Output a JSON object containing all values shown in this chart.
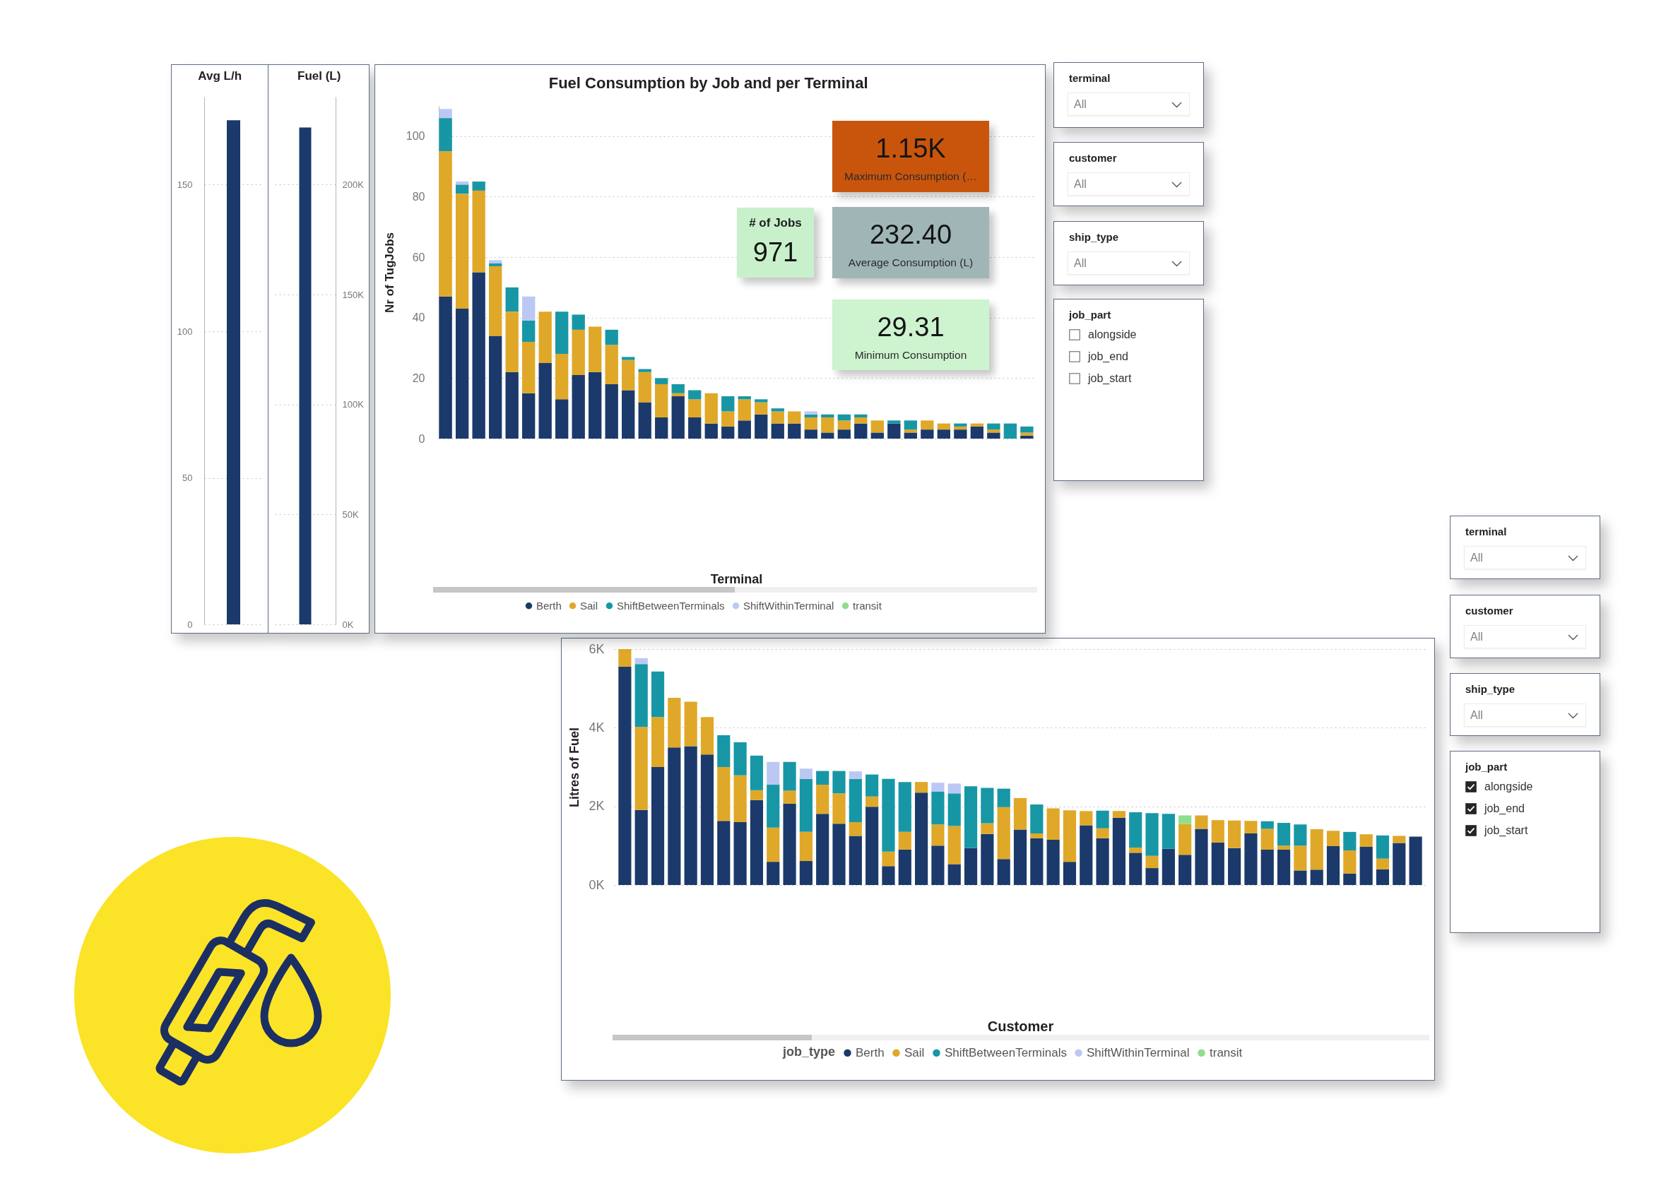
{
  "chart_data": [
    {
      "type": "bar",
      "title": "Avg L/h",
      "categories": [
        null
      ],
      "values": [
        172
      ],
      "color": "#1b3a6b",
      "ylim": [
        0,
        180
      ],
      "yticks": [
        0,
        50,
        100,
        150
      ],
      "grid": "y"
    },
    {
      "type": "bar",
      "title": "Fuel (L)",
      "categories": [
        null
      ],
      "values": [
        226000
      ],
      "color": "#1b3a6b",
      "ylim": [
        0,
        240000
      ],
      "yticks": [
        {
          "value": 0,
          "label": "0K"
        },
        {
          "value": 50000,
          "label": "50K"
        },
        {
          "value": 100000,
          "label": "100K"
        },
        {
          "value": 150000,
          "label": "150K"
        },
        {
          "value": 200000,
          "label": "200K"
        }
      ],
      "grid": "y"
    },
    {
      "type": "bar",
      "title": "Fuel Consumption by Job and per Terminal",
      "xlabel": "Terminal",
      "ylabel": "Nr of TugJobs",
      "stacked": true,
      "legend": "bottom",
      "grid": "y",
      "ylim": [
        0,
        110
      ],
      "yticks": [
        0,
        20,
        40,
        60,
        80,
        100
      ],
      "categories": [
        null,
        null,
        null,
        null,
        null,
        null,
        null,
        null,
        null,
        null,
        null,
        null,
        null,
        null,
        null,
        null,
        null,
        null,
        null,
        null,
        null,
        null,
        null,
        null,
        null,
        null,
        null,
        null,
        null,
        null,
        null,
        null,
        null,
        null,
        null,
        null
      ],
      "series": [
        {
          "name": "Berth",
          "color": "#1b3a6b",
          "values": [
            47,
            43,
            55,
            34,
            22,
            15,
            25,
            13,
            21,
            22,
            18,
            16,
            12,
            7,
            14,
            7,
            5,
            4,
            6,
            8,
            5,
            5,
            3,
            2,
            3,
            5,
            2,
            5,
            2,
            3,
            3,
            3,
            4,
            2,
            null,
            1
          ]
        },
        {
          "name": "Sail",
          "color": "#e0a828",
          "values": [
            48,
            38,
            27,
            23,
            20,
            17,
            17,
            15,
            15,
            15,
            13,
            10,
            10,
            11,
            1,
            6,
            10,
            5,
            7,
            4,
            4,
            4,
            4,
            5,
            3,
            2,
            4,
            null,
            1,
            3,
            2,
            1,
            1,
            1,
            null,
            1
          ]
        },
        {
          "name": "ShiftBetweenTerminals",
          "color": "#1797a6",
          "values": [
            11,
            3,
            3,
            1,
            8,
            7,
            null,
            14,
            5,
            null,
            5,
            1,
            1,
            2,
            3,
            3,
            null,
            5,
            1,
            1,
            1,
            null,
            1,
            1,
            2,
            1,
            null,
            1,
            3,
            null,
            null,
            1,
            null,
            2,
            5,
            2
          ]
        },
        {
          "name": "ShiftWithinTerminal",
          "color": "#bcc8f4",
          "values": [
            3,
            1,
            null,
            1,
            null,
            8,
            null,
            null,
            null,
            null,
            null,
            null,
            null,
            null,
            null,
            null,
            null,
            null,
            null,
            null,
            null,
            null,
            1,
            null,
            null,
            null,
            null,
            null,
            null,
            null,
            null,
            null,
            null,
            null,
            null,
            null
          ]
        },
        {
          "name": "transit",
          "color": "#8ede8e",
          "values": [
            null,
            null,
            null,
            null,
            null,
            null,
            null,
            null,
            null,
            null,
            null,
            null,
            null,
            null,
            null,
            null,
            null,
            null,
            null,
            null,
            null,
            null,
            null,
            null,
            null,
            null,
            null,
            null,
            null,
            null,
            null,
            null,
            null,
            null,
            null,
            null
          ]
        }
      ]
    },
    {
      "type": "other",
      "annotations": [
        "1.15K"
      ],
      "xlabel": "Maximum Consumption (…",
      "color": "#c9550c"
    },
    {
      "type": "other",
      "title": "# of Jobs",
      "annotations": [
        "971"
      ],
      "color": "#c8f1cb"
    },
    {
      "type": "other",
      "annotations": [
        "232.40"
      ],
      "xlabel": "Average Consumption (L)",
      "color": "#a0b6b6"
    },
    {
      "type": "other",
      "annotations": [
        "29.31"
      ],
      "xlabel": "Minimum Consumption",
      "color": "#cdf3cf"
    },
    {
      "type": "other",
      "title": "terminal",
      "annotations": [
        "All"
      ]
    },
    {
      "type": "other",
      "title": "customer",
      "annotations": [
        "All"
      ]
    },
    {
      "type": "other",
      "title": "ship_type",
      "annotations": [
        "All"
      ]
    },
    {
      "type": "other",
      "title": "job_part",
      "categories": [
        "alongside",
        "job_end",
        "job_start"
      ]
    },
    {
      "type": "bar",
      "xlabel": "Customer",
      "ylabel": "Litres of Fuel",
      "legend_title": "job_type",
      "stacked": true,
      "legend": "bottom",
      "grid": "y",
      "ylim": [
        0,
        6000
      ],
      "yticks": [
        {
          "value": 0,
          "label": "0K"
        },
        {
          "value": 2000,
          "label": "2K"
        },
        {
          "value": 4000,
          "label": "4K"
        },
        {
          "value": 6000,
          "label": "6K"
        }
      ],
      "categories": [
        null,
        null,
        null,
        null,
        null,
        null,
        null,
        null,
        null,
        null,
        null,
        null,
        null,
        null,
        null,
        null,
        null,
        null,
        null,
        null,
        null,
        null,
        null,
        null,
        null,
        null,
        null,
        null,
        null,
        null,
        null,
        null,
        null,
        null,
        null,
        null,
        null,
        null,
        null,
        null,
        null,
        null,
        null,
        null,
        null,
        null,
        null,
        null,
        null
      ],
      "series": [
        {
          "name": "Berth",
          "color": "#1b3a6b",
          "values": [
            5550,
            1910,
            3000,
            3500,
            3530,
            3320,
            1630,
            1600,
            2160,
            590,
            2070,
            610,
            1810,
            1560,
            1250,
            1990,
            480,
            900,
            2350,
            1000,
            530,
            940,
            1300,
            660,
            1410,
            1190,
            1150,
            590,
            1520,
            1190,
            1710,
            820,
            430,
            920,
            770,
            1430,
            1080,
            940,
            1310,
            900,
            900,
            370,
            390,
            990,
            290,
            970,
            400,
            1070,
            1230
          ]
        },
        {
          "name": "Sail",
          "color": "#e0a828",
          "values": [
            450,
            2110,
            1270,
            1260,
            1130,
            950,
            1370,
            1190,
            250,
            870,
            330,
            740,
            740,
            770,
            350,
            260,
            370,
            450,
            270,
            540,
            970,
            null,
            270,
            1320,
            800,
            120,
            800,
            1310,
            360,
            250,
            170,
            130,
            310,
            null,
            780,
            340,
            570,
            700,
            320,
            530,
            100,
            630,
            1030,
            390,
            590,
            320,
            270,
            180,
            null
          ]
        },
        {
          "name": "ShiftBetweenTerminals",
          "color": "#1797a6",
          "values": [
            null,
            1600,
            1160,
            null,
            null,
            null,
            810,
            840,
            880,
            1090,
            730,
            1350,
            350,
            570,
            1100,
            560,
            1850,
            1270,
            null,
            840,
            830,
            1570,
            900,
            470,
            null,
            740,
            null,
            null,
            null,
            450,
            null,
            900,
            1090,
            890,
            null,
            null,
            null,
            null,
            null,
            190,
            580,
            540,
            null,
            null,
            470,
            null,
            590,
            null,
            null
          ]
        },
        {
          "name": "ShiftWithinTerminal",
          "color": "#bcc8f4",
          "values": [
            null,
            150,
            null,
            null,
            null,
            null,
            null,
            null,
            null,
            580,
            null,
            260,
            null,
            null,
            190,
            null,
            null,
            null,
            null,
            220,
            250,
            null,
            null,
            null,
            null,
            null,
            null,
            null,
            null,
            null,
            null,
            null,
            null,
            null,
            null,
            null,
            null,
            null,
            null,
            null,
            null,
            null,
            null,
            null,
            null,
            null,
            null,
            null,
            null
          ]
        },
        {
          "name": "transit",
          "color": "#8ede8e",
          "values": [
            null,
            null,
            null,
            null,
            null,
            null,
            null,
            null,
            null,
            null,
            null,
            null,
            null,
            null,
            null,
            null,
            null,
            null,
            null,
            null,
            null,
            null,
            null,
            null,
            null,
            null,
            null,
            null,
            null,
            null,
            null,
            null,
            null,
            null,
            220,
            null,
            null,
            null,
            null,
            null,
            null,
            null,
            null,
            null,
            null,
            null,
            null,
            null,
            null
          ]
        }
      ]
    },
    {
      "type": "other",
      "title": "terminal",
      "annotations": [
        "All"
      ]
    },
    {
      "type": "other",
      "title": "customer",
      "annotations": [
        "All"
      ]
    },
    {
      "type": "other",
      "title": "ship_type",
      "annotations": [
        "All"
      ]
    },
    {
      "type": "other",
      "title": "job_part",
      "categories": [
        "alongside",
        "job_end",
        "job_start"
      ]
    }
  ]
}
